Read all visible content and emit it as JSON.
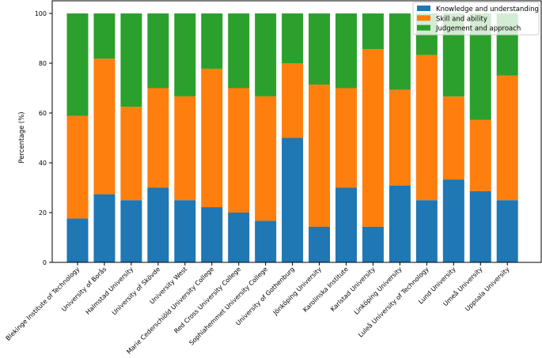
{
  "chart_data": {
    "type": "bar",
    "stacked": true,
    "title": "",
    "xlabel": "",
    "ylabel": "Percentage (%)",
    "ylim": [
      0,
      100
    ],
    "yticks": [
      0,
      20,
      40,
      60,
      80,
      100
    ],
    "grid": false,
    "legend_position": "top-right",
    "categories": [
      "Blekinge Institute of Technology",
      "University of Borås",
      "Halmstad University",
      "University of Skövde",
      "University West",
      "Marie Cederschiöld University College",
      "Red Cross University College",
      "Sophiahemmet University College",
      "University of Gothenburg",
      "Jönköping University",
      "Karolinska Institute",
      "Karlstad University",
      "Linköping University",
      "Luleå University of Technology",
      "Lund University",
      "Umeå University",
      "Uppsala University"
    ],
    "series": [
      {
        "name": "Knowledge and understanding",
        "color": "#1f77b4",
        "values": [
          17.6,
          27.3,
          25.0,
          30.0,
          25.0,
          22.2,
          20.0,
          16.7,
          50.0,
          14.3,
          30.0,
          14.3,
          30.8,
          25.0,
          33.3,
          28.6,
          25.0
        ]
      },
      {
        "name": "Skill and ability",
        "color": "#ff7f0e",
        "values": [
          41.2,
          54.5,
          37.5,
          40.0,
          41.7,
          55.6,
          50.0,
          50.0,
          30.0,
          57.1,
          40.0,
          71.4,
          38.5,
          58.3,
          33.3,
          28.6,
          50.0
        ]
      },
      {
        "name": "Judgement and approach",
        "color": "#2ca02c",
        "values": [
          41.2,
          18.2,
          37.5,
          30.0,
          33.3,
          22.2,
          30.0,
          33.3,
          20.0,
          28.6,
          30.0,
          14.3,
          30.7,
          16.7,
          33.4,
          42.8,
          25.0
        ]
      }
    ]
  }
}
